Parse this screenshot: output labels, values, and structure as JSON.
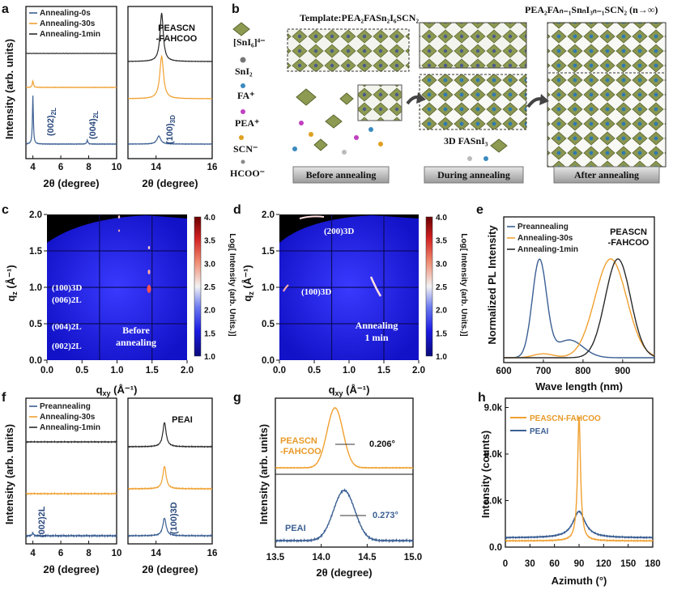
{
  "colors": {
    "blue": "#3b5f93",
    "orange": "#f0a030",
    "black": "#2a2a2a",
    "gi_bg": "#1e1ed8"
  },
  "panels": {
    "a": {
      "letter": "a",
      "xlabel": "2θ (degree)",
      "ylabel": "Intensity (arb. units)",
      "left_ticks": [
        "4",
        "6",
        "8",
        "10"
      ],
      "right_ticks": [
        "14",
        "16"
      ],
      "legend": [
        "Annealing-0s",
        "Annealing-30s",
        "Annealing-1min"
      ],
      "peaks": [
        "(002)",
        "(004)",
        "(100)"
      ],
      "peak_subs": [
        "2L",
        "2L",
        "3D"
      ],
      "sample": "PEASCN\n-FAHCOO",
      "sample_lines": [
        "PEASCN",
        "-FAHCOO"
      ]
    },
    "b": {
      "letter": "b",
      "template_title": "Template:PEA₂FASn₂I₆SCN₂",
      "final_title": "PEA₂FAₙ₋₁SnₙI₃ₙ₋₁SCN₂ (n→∞)",
      "species": [
        "[SnI₆]⁴⁻",
        "SnI₂",
        "FA⁺",
        "PEA⁺",
        "SCN⁻",
        "HCOO⁻"
      ],
      "mid_label": "3D FASnI₃",
      "stages": [
        "Before annealing",
        "During annealing",
        "After annealing"
      ]
    },
    "c": {
      "letter": "c",
      "xlabel": "qxy (Å⁻¹)",
      "ylabel": "qz (Å⁻¹)",
      "xticks": [
        "0.0",
        "0.5",
        "1.0",
        "1.5",
        "2.0"
      ],
      "yticks": [
        "0.0",
        "0.5",
        "1.0",
        "1.5",
        "2.0"
      ],
      "cbar_ticks": [
        "1.0",
        "1.5",
        "2.0",
        "2.5",
        "3.0",
        "3.5",
        "4.0"
      ],
      "cbar_label": "Log[ Intensity (arb. Units.)]",
      "labels": [
        "(100)3D",
        "(006)2L",
        "(004)2L",
        "(002)2L"
      ],
      "state": [
        "Before",
        "annealing"
      ]
    },
    "d": {
      "letter": "d",
      "xlabel": "qxy (Å⁻¹)",
      "ylabel": "qz (Å⁻¹)",
      "xticks": [
        "0.0",
        "0.5",
        "1.0",
        "1.5",
        "2.0"
      ],
      "yticks": [
        "0.0",
        "0.5",
        "1.0",
        "1.5",
        "2.0"
      ],
      "cbar_ticks": [
        "1.0",
        "1.5",
        "2.0",
        "2.5",
        "3.0",
        "3.5",
        "4.0"
      ],
      "cbar_label": "Log[ Intensity (arb. Units.)]",
      "labels": [
        "(200)3D",
        "(100)3D"
      ],
      "state": [
        "Annealing",
        "1 min"
      ]
    },
    "e": {
      "letter": "e",
      "xlabel": "Wave length (nm)",
      "ylabel": "Normalized PL Intensity",
      "xticks": [
        "600",
        "700",
        "800",
        "900"
      ],
      "legend": [
        "Preannealing",
        "Annealing-30s",
        "Annealing-1min"
      ],
      "sample": [
        "PEASCN",
        "-FAHCOO"
      ]
    },
    "f": {
      "letter": "f",
      "xlabel": "2θ (degree)",
      "ylabel": "Intensity (arb. units)",
      "left_ticks": [
        "4",
        "6",
        "8",
        "10"
      ],
      "right_ticks": [
        "14",
        "16"
      ],
      "legend": [
        "Preannealing",
        "Annealing-30s",
        "Annealing-1min"
      ],
      "sample": "PEAI",
      "peaks": [
        "(002)2L",
        "(100)3D"
      ]
    },
    "g": {
      "letter": "g",
      "xlabel": "2θ (degree)",
      "ylabel": "Intensity (arb. units)",
      "xticks": [
        "13.5",
        "14.0",
        "14.5",
        "15.0"
      ],
      "labels": [
        "PEASCN",
        "-FAHCOO",
        "PEAI"
      ],
      "fwhm": [
        "0.206°",
        "0.273°"
      ]
    },
    "h": {
      "letter": "h",
      "xlabel": "Azimuth (°)",
      "ylabel": "Intensity (counts)",
      "xticks": [
        "0",
        "30",
        "60",
        "90",
        "120",
        "150",
        "180"
      ],
      "yticks": [
        "0.0",
        "3.0k",
        "6.0k",
        "9.0k"
      ],
      "legend": [
        "PEASCN-FAHCOO",
        "PEAI"
      ]
    }
  },
  "chart_data": [
    {
      "type": "line",
      "panel": "a",
      "title": "",
      "xlabel": "2θ (degree)",
      "ylabel": "Intensity (arb. units)",
      "xlim": [
        3.5,
        10
      ],
      "xlim_right": [
        13,
        16
      ],
      "series": [
        {
          "name": "Annealing-0s",
          "peaks_2theta": [
            4.0,
            7.9,
            14.1
          ],
          "relative_heights": [
            1.0,
            0.08,
            0.2
          ]
        },
        {
          "name": "Annealing-30s",
          "peaks_2theta": [
            4.0,
            14.2
          ],
          "relative_heights": [
            0.1,
            0.75
          ]
        },
        {
          "name": "Annealing-1min",
          "peaks_2theta": [
            14.2
          ],
          "relative_heights": [
            1.0
          ]
        }
      ]
    },
    {
      "type": "heatmap",
      "panel": "c",
      "title": "",
      "xlabel": "qxy (Å⁻¹)",
      "ylabel": "qz (Å⁻¹)",
      "xlim": [
        0,
        2
      ],
      "ylim": [
        0,
        2
      ],
      "clim": [
        1,
        4
      ]
    },
    {
      "type": "heatmap",
      "panel": "d",
      "title": "",
      "xlabel": "qxy (Å⁻¹)",
      "ylabel": "qz (Å⁻¹)",
      "xlim": [
        0,
        2
      ],
      "ylim": [
        0,
        2
      ],
      "clim": [
        1,
        4
      ]
    },
    {
      "type": "line",
      "panel": "e",
      "title": "",
      "xlabel": "Wave length (nm)",
      "ylabel": "Normalized PL Intensity",
      "xlim": [
        600,
        980
      ],
      "series": [
        {
          "name": "Preannealing",
          "peak_nm": 690,
          "shoulder_nm": 765
        },
        {
          "name": "Annealing-30s",
          "peak_nm": 870
        },
        {
          "name": "Annealing-1min",
          "peak_nm": 888
        }
      ]
    },
    {
      "type": "line",
      "panel": "f",
      "title": "",
      "xlabel": "2θ (degree)",
      "ylabel": "Intensity (arb. units)",
      "xlim": [
        3.5,
        10
      ],
      "xlim_right": [
        13,
        16
      ],
      "series": [
        {
          "name": "Preannealing",
          "peaks_2theta": [
            4.0,
            14.3
          ]
        },
        {
          "name": "Annealing-30s",
          "peaks_2theta": [
            14.3
          ]
        },
        {
          "name": "Annealing-1min",
          "peaks_2theta": [
            14.3
          ]
        }
      ]
    },
    {
      "type": "line",
      "panel": "g",
      "title": "",
      "xlabel": "2θ (degree)",
      "ylabel": "Intensity (arb. units)",
      "xlim": [
        13.5,
        15.0
      ],
      "series": [
        {
          "name": "PEASCN-FAHCOO",
          "peak_2theta": 14.15,
          "fwhm_deg": 0.206
        },
        {
          "name": "PEAI",
          "peak_2theta": 14.25,
          "fwhm_deg": 0.273
        }
      ]
    },
    {
      "type": "line",
      "panel": "h",
      "title": "",
      "xlabel": "Azimuth (°)",
      "ylabel": "Intensity (counts)",
      "xlim": [
        0,
        180
      ],
      "ylim": [
        0,
        9600
      ],
      "series": [
        {
          "name": "PEASCN-FAHCOO",
          "peak_azimuth": 90,
          "peak_counts": 8400,
          "baseline_counts": 400
        },
        {
          "name": "PEAI",
          "peak_azimuth": 90,
          "peak_counts": 2300,
          "baseline_counts": 600
        }
      ]
    }
  ]
}
